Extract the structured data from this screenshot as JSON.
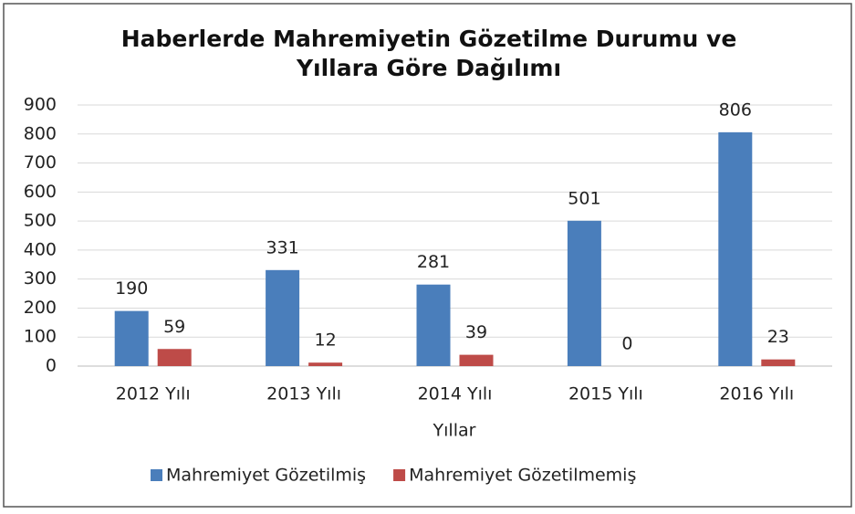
{
  "chart_data": {
    "type": "bar",
    "title": [
      "Haberlerde Mahremiyetin Gözetilme Durumu ve",
      "Yıllara Göre Dağılımı"
    ],
    "x_label": "Yıllar",
    "categories": [
      "2012 Yılı",
      "2013 Yılı",
      "2014 Yılı",
      "2015 Yılı",
      "2016 Yılı"
    ],
    "series": [
      {
        "name": "Mahremiyet Gözetilmiş",
        "color": "#4a7ebb",
        "values": [
          190,
          331,
          281,
          501,
          806
        ]
      },
      {
        "name": "Mahremiyet Gözetilmemiş",
        "color": "#be4b48",
        "values": [
          59,
          12,
          39,
          0,
          23
        ]
      }
    ],
    "ylim": [
      0,
      900
    ],
    "yticks": [
      0,
      100,
      200,
      300,
      400,
      500,
      600,
      700,
      800,
      900
    ],
    "grid": true,
    "legend": "bottom"
  }
}
